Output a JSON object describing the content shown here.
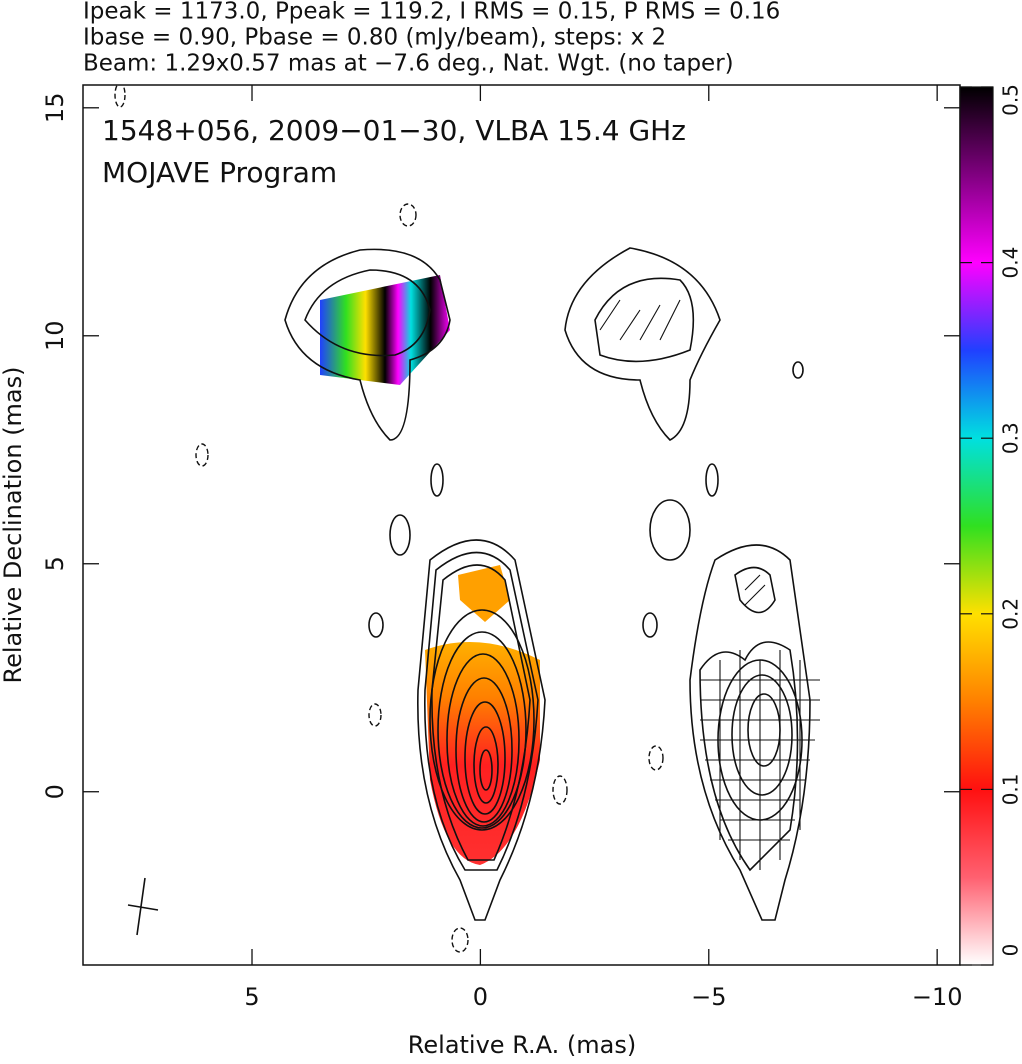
{
  "chart_data": {
    "type": "contour-map",
    "title_lines": [
      "Ipeak = 1173.0, Ppeak = 119.2, I RMS = 0.15, P RMS = 0.16",
      "Ibase = 0.90, Pbase = 0.80 (mJy/beam), steps: x 2",
      "Beam: 1.29x0.57 mas at −7.6 deg., Nat. Wgt. (no taper)"
    ],
    "annotations": [
      "1548+056, 2009−01−30, VLBA 15.4 GHz",
      "MOJAVE Program"
    ],
    "x_label": "Relative R.A. (mas)",
    "y_label": "Relative Declination (mas)",
    "xlim": [
      8.7,
      -10.5
    ],
    "ylim": [
      -3.8,
      15.5
    ],
    "xticks": [
      5,
      0,
      {
        "value": -5,
        "label": "−5"
      },
      {
        "value": -10,
        "label": "−10"
      }
    ],
    "yticks": [
      0,
      5,
      10,
      15
    ],
    "colorbar_lim": [
      0,
      0.5
    ],
    "colorbar_ticks": [
      0,
      0.1,
      0.2,
      0.3,
      0.4,
      0.5
    ]
  }
}
